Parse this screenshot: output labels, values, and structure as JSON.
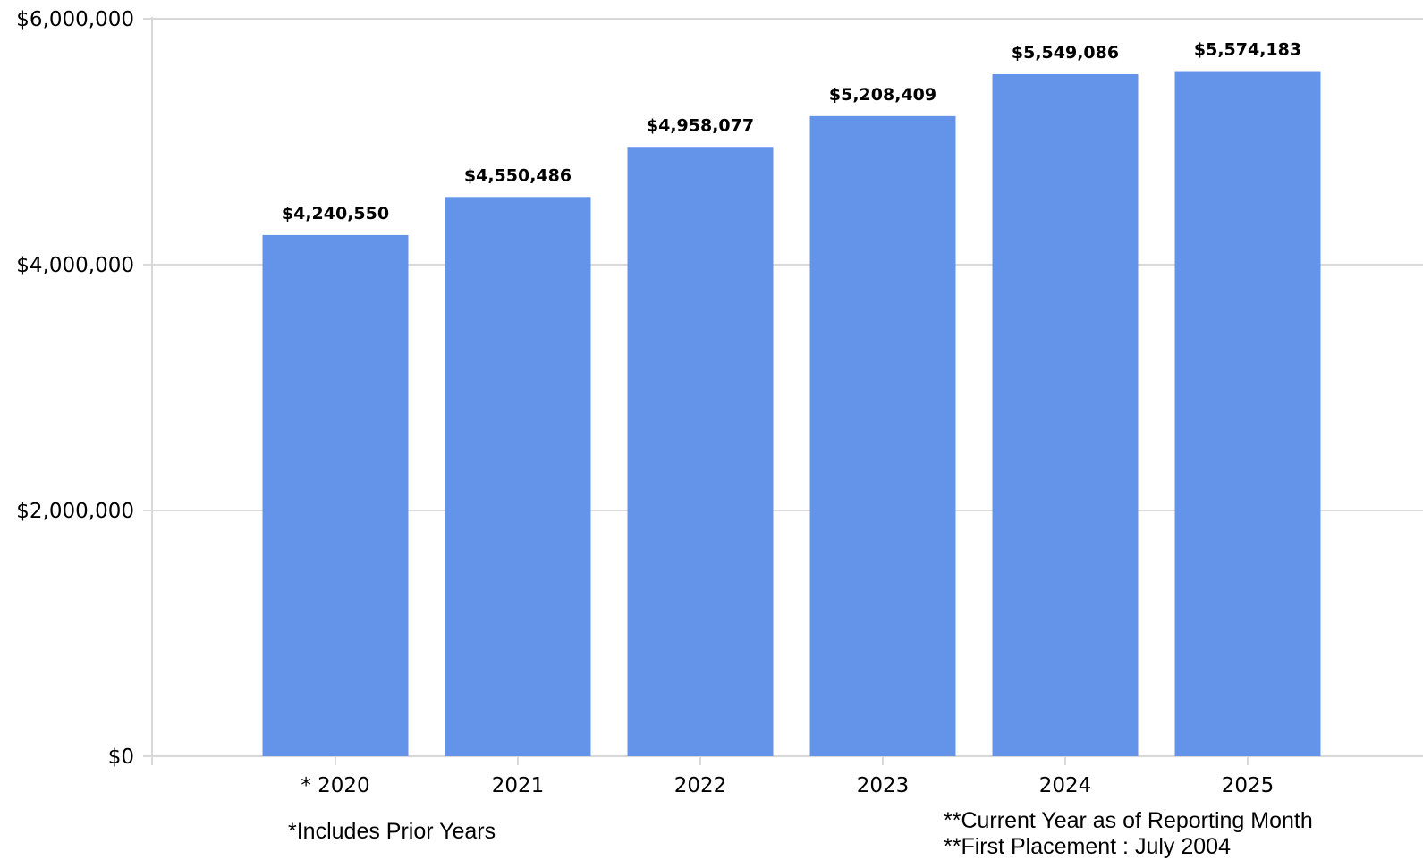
{
  "chart_data": {
    "type": "bar",
    "categories": [
      "* 2020",
      "2021",
      "2022",
      "2023",
      "2024",
      "2025"
    ],
    "values": [
      4240550,
      4550486,
      4958077,
      5208409,
      5549086,
      5574183
    ],
    "data_labels": [
      "$4,240,550",
      "$4,550,486",
      "$4,958,077",
      "$5,208,409",
      "$5,549,086",
      "$5,574,183"
    ],
    "y_ticks": [
      0,
      2000000,
      4000000,
      6000000
    ],
    "y_tick_labels": [
      "$0",
      "$2,000,000",
      "$4,000,000",
      "$6,000,000"
    ],
    "ylim": [
      0,
      6000000
    ],
    "title": "",
    "xlabel": "",
    "ylabel": "",
    "grid": true,
    "bar_color": "#6494EA",
    "grid_color": "#D9D9D9"
  },
  "notes": {
    "prior_years": "*Includes Prior Years",
    "current_year": "**Current Year as of Reporting Month",
    "first_placement": "**First Placement : July 2004"
  }
}
